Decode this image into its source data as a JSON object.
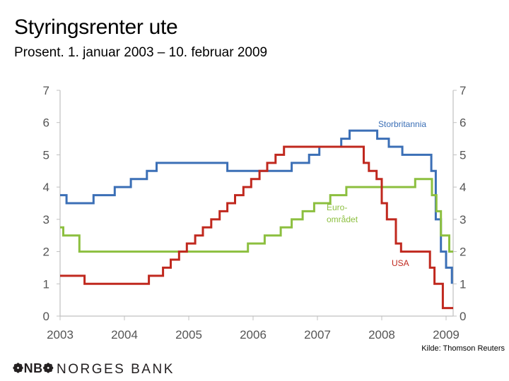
{
  "header": {
    "title": "Styringsrenter ute",
    "subtitle": "Prosent. 1. januar 2003 – 10. februar 2009"
  },
  "source": "Kilde: Thomson Reuters",
  "footer": {
    "logo": "❁NB❁",
    "bank_name": "NORGES BANK"
  },
  "chart_data": {
    "type": "line",
    "title": "Styringsrenter ute",
    "subtitle": "Prosent. 1. januar 2003 – 10. februar 2009",
    "xlabel": "",
    "ylabel": "",
    "xlim": [
      2003,
      2009.11
    ],
    "ylim": [
      0,
      7
    ],
    "x_ticks": [
      "2003",
      "2004",
      "2005",
      "2006",
      "2007",
      "2008",
      "2009"
    ],
    "y_ticks": [
      "0",
      "1",
      "2",
      "3",
      "4",
      "5",
      "6",
      "7"
    ],
    "dual_y_axis": true,
    "grid": false,
    "colors": {
      "Storbritannia": "#3b6fb6",
      "Euroområdet": "#8cbf3f",
      "USA": "#c0281e",
      "axis": "#c0c0c0"
    },
    "series": [
      {
        "name": "Storbritannia",
        "label_lines": [
          "Storbritannia"
        ],
        "points": [
          [
            2003.0,
            3.75
          ],
          [
            2003.1,
            3.75
          ],
          [
            2003.1,
            3.5
          ],
          [
            2003.52,
            3.5
          ],
          [
            2003.52,
            3.75
          ],
          [
            2003.85,
            3.75
          ],
          [
            2003.85,
            4.0
          ],
          [
            2004.1,
            4.0
          ],
          [
            2004.1,
            4.25
          ],
          [
            2004.35,
            4.25
          ],
          [
            2004.35,
            4.5
          ],
          [
            2004.5,
            4.5
          ],
          [
            2004.5,
            4.75
          ],
          [
            2005.6,
            4.75
          ],
          [
            2005.6,
            4.5
          ],
          [
            2006.6,
            4.5
          ],
          [
            2006.6,
            4.75
          ],
          [
            2006.87,
            4.75
          ],
          [
            2006.87,
            5.0
          ],
          [
            2007.03,
            5.0
          ],
          [
            2007.03,
            5.25
          ],
          [
            2007.37,
            5.25
          ],
          [
            2007.37,
            5.5
          ],
          [
            2007.5,
            5.5
          ],
          [
            2007.5,
            5.75
          ],
          [
            2007.93,
            5.75
          ],
          [
            2007.93,
            5.5
          ],
          [
            2008.11,
            5.5
          ],
          [
            2008.11,
            5.25
          ],
          [
            2008.32,
            5.25
          ],
          [
            2008.32,
            5.0
          ],
          [
            2008.77,
            5.0
          ],
          [
            2008.77,
            4.5
          ],
          [
            2008.84,
            4.5
          ],
          [
            2008.84,
            3.0
          ],
          [
            2008.92,
            3.0
          ],
          [
            2008.92,
            2.0
          ],
          [
            2009.0,
            2.0
          ],
          [
            2009.0,
            1.5
          ],
          [
            2009.09,
            1.5
          ],
          [
            2009.09,
            1.0
          ]
        ]
      },
      {
        "name": "Euroområdet",
        "label_lines": [
          "Euro-",
          "området"
        ],
        "points": [
          [
            2003.0,
            2.75
          ],
          [
            2003.05,
            2.75
          ],
          [
            2003.05,
            2.5
          ],
          [
            2003.3,
            2.5
          ],
          [
            2003.3,
            2.0
          ],
          [
            2005.92,
            2.0
          ],
          [
            2005.92,
            2.25
          ],
          [
            2006.18,
            2.25
          ],
          [
            2006.18,
            2.5
          ],
          [
            2006.43,
            2.5
          ],
          [
            2006.43,
            2.75
          ],
          [
            2006.6,
            2.75
          ],
          [
            2006.6,
            3.0
          ],
          [
            2006.77,
            3.0
          ],
          [
            2006.77,
            3.25
          ],
          [
            2006.95,
            3.25
          ],
          [
            2006.95,
            3.5
          ],
          [
            2007.2,
            3.5
          ],
          [
            2007.2,
            3.75
          ],
          [
            2007.45,
            3.75
          ],
          [
            2007.45,
            4.0
          ],
          [
            2008.52,
            4.0
          ],
          [
            2008.52,
            4.25
          ],
          [
            2008.78,
            4.25
          ],
          [
            2008.78,
            3.75
          ],
          [
            2008.85,
            3.75
          ],
          [
            2008.85,
            3.25
          ],
          [
            2008.92,
            3.25
          ],
          [
            2008.92,
            2.5
          ],
          [
            2009.05,
            2.5
          ],
          [
            2009.05,
            2.0
          ],
          [
            2009.11,
            2.0
          ]
        ]
      },
      {
        "name": "USA",
        "label_lines": [
          "USA"
        ],
        "points": [
          [
            2003.0,
            1.25
          ],
          [
            2003.38,
            1.25
          ],
          [
            2003.38,
            1.0
          ],
          [
            2004.38,
            1.0
          ],
          [
            2004.38,
            1.25
          ],
          [
            2004.6,
            1.25
          ],
          [
            2004.6,
            1.5
          ],
          [
            2004.72,
            1.5
          ],
          [
            2004.72,
            1.75
          ],
          [
            2004.85,
            1.75
          ],
          [
            2004.85,
            2.0
          ],
          [
            2004.97,
            2.0
          ],
          [
            2004.97,
            2.25
          ],
          [
            2005.1,
            2.25
          ],
          [
            2005.1,
            2.5
          ],
          [
            2005.22,
            2.5
          ],
          [
            2005.22,
            2.75
          ],
          [
            2005.35,
            2.75
          ],
          [
            2005.35,
            3.0
          ],
          [
            2005.48,
            3.0
          ],
          [
            2005.48,
            3.25
          ],
          [
            2005.6,
            3.25
          ],
          [
            2005.6,
            3.5
          ],
          [
            2005.72,
            3.5
          ],
          [
            2005.72,
            3.75
          ],
          [
            2005.85,
            3.75
          ],
          [
            2005.85,
            4.0
          ],
          [
            2005.97,
            4.0
          ],
          [
            2005.97,
            4.25
          ],
          [
            2006.1,
            4.25
          ],
          [
            2006.1,
            4.5
          ],
          [
            2006.22,
            4.5
          ],
          [
            2006.22,
            4.75
          ],
          [
            2006.35,
            4.75
          ],
          [
            2006.35,
            5.0
          ],
          [
            2006.48,
            5.0
          ],
          [
            2006.48,
            5.25
          ],
          [
            2007.72,
            5.25
          ],
          [
            2007.72,
            4.75
          ],
          [
            2007.8,
            4.75
          ],
          [
            2007.8,
            4.5
          ],
          [
            2007.92,
            4.5
          ],
          [
            2007.92,
            4.25
          ],
          [
            2008.0,
            4.25
          ],
          [
            2008.0,
            3.5
          ],
          [
            2008.08,
            3.5
          ],
          [
            2008.08,
            3.0
          ],
          [
            2008.22,
            3.0
          ],
          [
            2008.22,
            2.25
          ],
          [
            2008.3,
            2.25
          ],
          [
            2008.3,
            2.0
          ],
          [
            2008.75,
            2.0
          ],
          [
            2008.75,
            1.5
          ],
          [
            2008.82,
            1.5
          ],
          [
            2008.82,
            1.0
          ],
          [
            2008.95,
            1.0
          ],
          [
            2008.95,
            0.25
          ],
          [
            2009.11,
            0.25
          ]
        ]
      }
    ]
  }
}
